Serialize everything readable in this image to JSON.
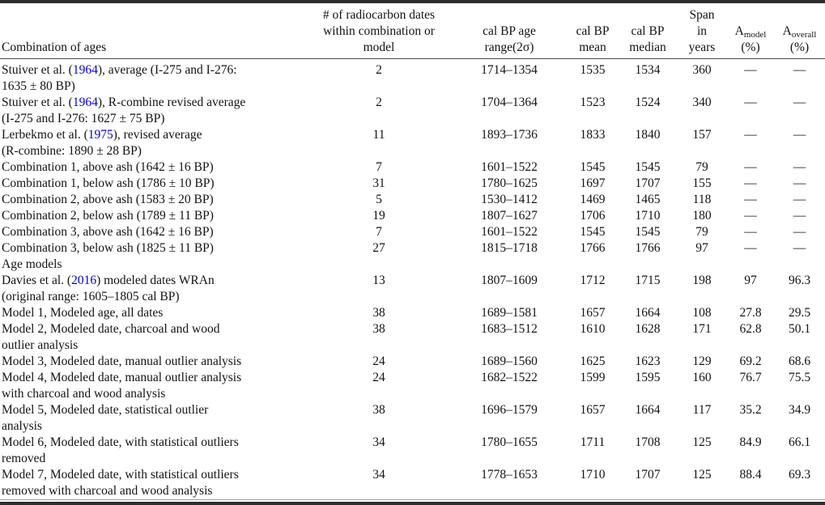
{
  "colors": {
    "text": "#141414",
    "link": "#0000dd",
    "rule_dark": "#2e2e2e",
    "rule_light": "#9a9a9a"
  },
  "table": {
    "headers": [
      {
        "id": "combination",
        "align": "left",
        "lines": [
          [
            {
              "t": "Combination of ages"
            }
          ]
        ]
      },
      {
        "id": "n_dates",
        "lines": [
          [
            {
              "t": "# of radiocarbon dates"
            }
          ],
          [
            {
              "t": "within combination or"
            }
          ],
          [
            {
              "t": "model"
            }
          ]
        ]
      },
      {
        "id": "range",
        "lines": [
          [
            {
              "t": "cal BP age"
            }
          ],
          [
            {
              "t": "range(2σ)"
            }
          ]
        ]
      },
      {
        "id": "mean",
        "lines": [
          [
            {
              "t": "cal BP"
            }
          ],
          [
            {
              "t": "mean"
            }
          ]
        ]
      },
      {
        "id": "median",
        "lines": [
          [
            {
              "t": "cal BP"
            }
          ],
          [
            {
              "t": "median"
            }
          ]
        ]
      },
      {
        "id": "span",
        "lines": [
          [
            {
              "t": "Span"
            }
          ],
          [
            {
              "t": "in"
            }
          ],
          [
            {
              "t": "years"
            }
          ]
        ]
      },
      {
        "id": "a_model",
        "lines": [
          [
            {
              "t": "A"
            },
            {
              "t": "model",
              "sub": true
            }
          ],
          [
            {
              "t": "(%)"
            }
          ]
        ]
      },
      {
        "id": "a_overall",
        "lines": [
          [
            {
              "t": "A"
            },
            {
              "t": "overall",
              "sub": true
            }
          ],
          [
            {
              "t": "(%)"
            }
          ]
        ]
      }
    ],
    "rows": [
      {
        "label": [
          {
            "t": "Stuiver et al. ("
          },
          {
            "t": "1964",
            "link": true
          },
          {
            "t": "), average (I-275 and I-276:"
          },
          {
            "br": true
          },
          {
            "t": "1635 ± 80 BP)"
          }
        ],
        "cells": [
          "2",
          "1714–1354",
          "1535",
          "1534",
          "360",
          "—",
          "—"
        ]
      },
      {
        "label": [
          {
            "t": "Stuiver et al. ("
          },
          {
            "t": "1964",
            "link": true
          },
          {
            "t": "), R-combine revised average"
          },
          {
            "br": true
          },
          {
            "t": "(I-275 and I-276: 1627 ± 75 BP)"
          }
        ],
        "cells": [
          "2",
          "1704–1364",
          "1523",
          "1524",
          "340",
          "—",
          "—"
        ]
      },
      {
        "label": [
          {
            "t": "Lerbekmo et al. ("
          },
          {
            "t": "1975",
            "link": true
          },
          {
            "t": "), revised average"
          },
          {
            "br": true
          },
          {
            "t": "(R-combine: 1890 ± 28 BP)"
          }
        ],
        "cells": [
          "11",
          "1893–1736",
          "1833",
          "1840",
          "157",
          "—",
          "—"
        ]
      },
      {
        "label": [
          {
            "t": "Combination 1, above ash (1642 ± 16 BP)"
          }
        ],
        "cells": [
          "7",
          "1601–1522",
          "1545",
          "1545",
          "79",
          "—",
          "—"
        ]
      },
      {
        "label": [
          {
            "t": "Combination 1, below ash (1786 ± 10 BP)"
          }
        ],
        "cells": [
          "31",
          "1780–1625",
          "1697",
          "1707",
          "155",
          "—",
          "—"
        ]
      },
      {
        "label": [
          {
            "t": "Combination 2, above ash (1583 ± 20 BP)"
          }
        ],
        "cells": [
          "5",
          "1530–1412",
          "1469",
          "1465",
          "118",
          "—",
          "—"
        ]
      },
      {
        "label": [
          {
            "t": "Combination 2, below ash (1789 ± 11 BP)"
          }
        ],
        "cells": [
          "19",
          "1807–1627",
          "1706",
          "1710",
          "180",
          "—",
          "—"
        ]
      },
      {
        "label": [
          {
            "t": "Combination 3, above ash (1642 ± 16 BP)"
          }
        ],
        "cells": [
          "7",
          "1601–1522",
          "1545",
          "1545",
          "79",
          "—",
          "—"
        ]
      },
      {
        "label": [
          {
            "t": "Combination 3, below ash (1825 ± 11 BP)"
          }
        ],
        "cells": [
          "27",
          "1815–1718",
          "1766",
          "1766",
          "97",
          "—",
          "—"
        ]
      },
      {
        "label": [
          {
            "t": "Age models"
          }
        ],
        "section": true,
        "cells": [
          "",
          "",
          "",
          "",
          "",
          "",
          ""
        ]
      },
      {
        "label": [
          {
            "t": "Davies et al. ("
          },
          {
            "t": "2016",
            "link": true
          },
          {
            "t": ") modeled dates WRAn"
          },
          {
            "br": true
          },
          {
            "t": "(original range: 1605–1805 cal BP)"
          }
        ],
        "cells": [
          "13",
          "1807–1609",
          "1712",
          "1715",
          "198",
          "97",
          "96.3"
        ]
      },
      {
        "label": [
          {
            "t": "Model 1, Modeled age, all dates"
          }
        ],
        "cells": [
          "38",
          "1689–1581",
          "1657",
          "1664",
          "108",
          "27.8",
          "29.5"
        ]
      },
      {
        "label": [
          {
            "t": "Model 2, Modeled date, charcoal and wood"
          },
          {
            "br": true
          },
          {
            "t": "outlier analysis"
          }
        ],
        "cells": [
          "38",
          "1683–1512",
          "1610",
          "1628",
          "171",
          "62.8",
          "50.1"
        ]
      },
      {
        "label": [
          {
            "t": "Model 3, Modeled date, manual outlier analysis"
          }
        ],
        "cells": [
          "24",
          "1689–1560",
          "1625",
          "1623",
          "129",
          "69.2",
          "68.6"
        ]
      },
      {
        "label": [
          {
            "t": "Model 4, Modeled date, manual outlier analysis"
          },
          {
            "br": true
          },
          {
            "t": "with charcoal and wood analysis"
          }
        ],
        "cells": [
          "24",
          "1682–1522",
          "1599",
          "1595",
          "160",
          "76.7",
          "75.5"
        ]
      },
      {
        "label": [
          {
            "t": "Model 5, Modeled date, statistical outlier"
          },
          {
            "br": true
          },
          {
            "t": "analysis"
          }
        ],
        "cells": [
          "38",
          "1696–1579",
          "1657",
          "1664",
          "117",
          "35.2",
          "34.9"
        ]
      },
      {
        "label": [
          {
            "t": "Model 6, Modeled date, with statistical outliers"
          },
          {
            "br": true
          },
          {
            "t": "removed"
          }
        ],
        "cells": [
          "34",
          "1780–1655",
          "1711",
          "1708",
          "125",
          "84.9",
          "66.1"
        ]
      },
      {
        "label": [
          {
            "t": "Model 7, Modeled date, with statistical outliers"
          },
          {
            "br": true
          },
          {
            "t": "removed with charcoal and wood analysis"
          }
        ],
        "cells": [
          "34",
          "1778–1653",
          "1710",
          "1707",
          "125",
          "88.4",
          "69.3"
        ]
      }
    ]
  }
}
